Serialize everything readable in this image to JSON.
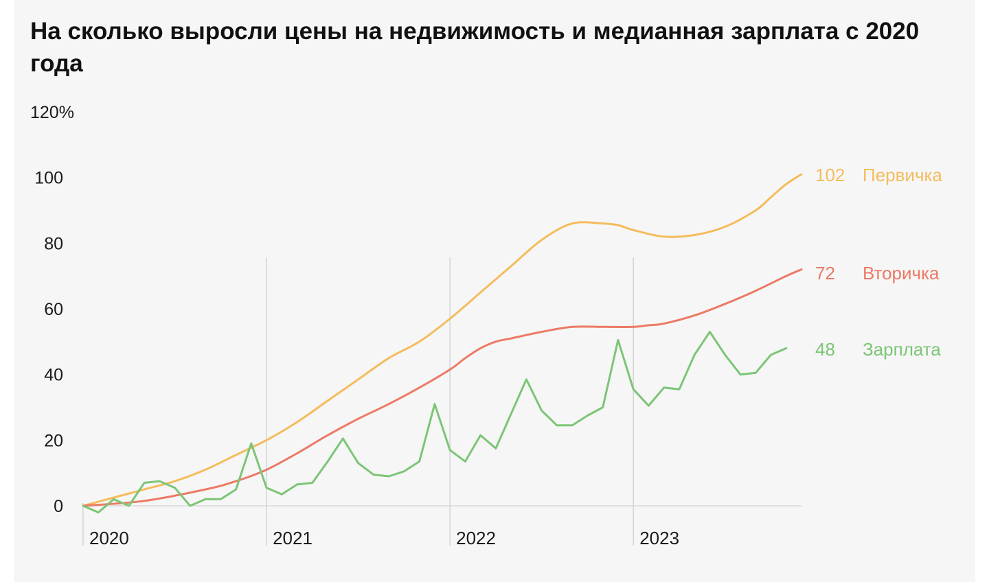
{
  "chart_data": {
    "type": "line",
    "title": "На сколько выросли цены на недвижимость и медианная зарплата с 2020 года",
    "y_unit": "%",
    "ylim": [
      0,
      120
    ],
    "y_ticks": [
      {
        "value": 0,
        "label": "0"
      },
      {
        "value": 20,
        "label": "20"
      },
      {
        "value": 40,
        "label": "40"
      },
      {
        "value": 60,
        "label": "60"
      },
      {
        "value": 80,
        "label": "80"
      },
      {
        "value": 100,
        "label": "100"
      },
      {
        "value": 120,
        "label": "120%"
      }
    ],
    "x_unit": "months since Jan 2020",
    "x_ticks": [
      {
        "value": 0,
        "label": "2020"
      },
      {
        "value": 12,
        "label": "2021"
      },
      {
        "value": 24,
        "label": "2022"
      },
      {
        "value": 36,
        "label": "2023"
      }
    ],
    "grid": "vertical lines at year starts",
    "series": [
      {
        "name": "Первичка",
        "color": "#f4bc5c",
        "end_value_label": "102",
        "x": [
          0,
          2,
          4,
          6,
          8,
          10,
          12,
          14,
          16,
          18,
          20,
          22,
          24,
          26,
          28,
          30,
          32,
          34,
          35,
          36,
          38,
          40,
          42,
          44,
          45,
          46,
          47
        ],
        "values": [
          0,
          2.5,
          5,
          7.5,
          11,
          15.5,
          20,
          25.5,
          32,
          38.5,
          45,
          50,
          57,
          65,
          73,
          81,
          86,
          86,
          85.5,
          84,
          82,
          82.5,
          85,
          90,
          94,
          98,
          101
        ]
      },
      {
        "name": "Вторичка",
        "color": "#ec7a66",
        "end_value_label": "72",
        "x": [
          0,
          4,
          8,
          10,
          12,
          14,
          16,
          18,
          20,
          22,
          24,
          25,
          26,
          27,
          28,
          30,
          32,
          34,
          36,
          37,
          38,
          40,
          42,
          44,
          46,
          47
        ],
        "values": [
          0,
          1.5,
          5,
          7.5,
          11,
          16,
          21.5,
          26.5,
          31,
          36,
          41.5,
          45,
          48,
          50,
          51,
          53,
          54.5,
          54.5,
          54.5,
          55,
          55.5,
          58,
          61.5,
          65.5,
          70,
          72
        ]
      },
      {
        "name": "Зарплата",
        "color": "#7cc576",
        "end_value_label": "48",
        "x": [
          0,
          1,
          2,
          3,
          4,
          5,
          6,
          7,
          8,
          9,
          10,
          11,
          12,
          13,
          14,
          15,
          16,
          17,
          18,
          19,
          20,
          21,
          22,
          23,
          24,
          25,
          26,
          27,
          28,
          29,
          30,
          31,
          32,
          33,
          34,
          35,
          36,
          37,
          38,
          39,
          40,
          41,
          42,
          43,
          44,
          45,
          46
        ],
        "values": [
          0,
          -2,
          2,
          0,
          7,
          7.5,
          5.5,
          0,
          2,
          2,
          5,
          19,
          5.5,
          3.5,
          6.5,
          7,
          13.5,
          20.5,
          13,
          9.5,
          9,
          10.5,
          13.5,
          31,
          17,
          13.5,
          21.5,
          17.5,
          28,
          38.5,
          29,
          24.5,
          24.5,
          27.5,
          30,
          50.5,
          35.5,
          30.5,
          36,
          35.5,
          46,
          53,
          46,
          40,
          40.5,
          46,
          48
        ]
      }
    ]
  }
}
